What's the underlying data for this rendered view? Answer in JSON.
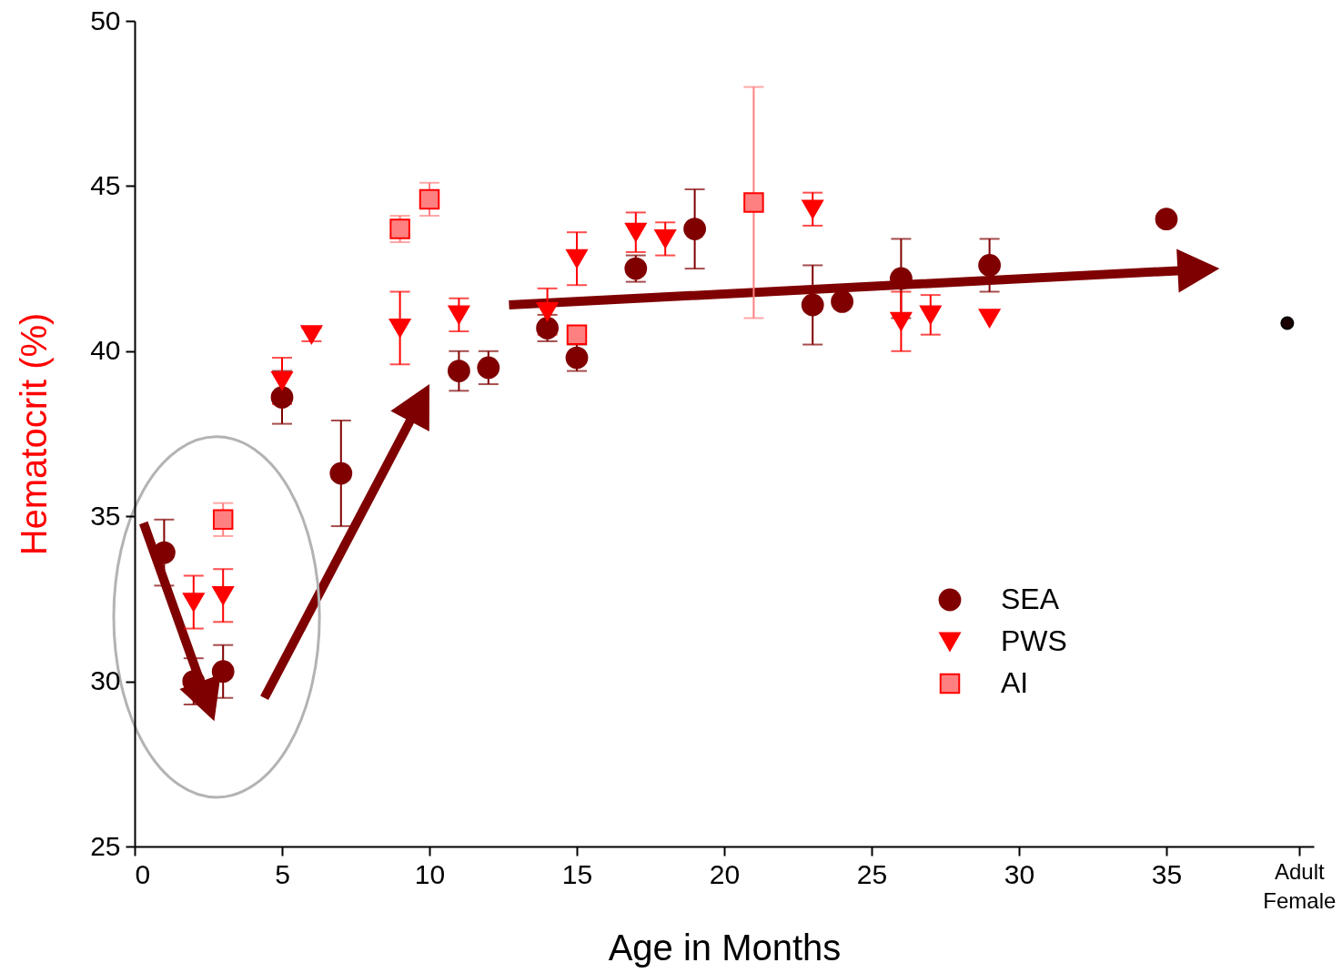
{
  "chart_data": {
    "type": "scatter",
    "xlabel": "Age in Months",
    "ylabel": "Hematocrit (%)",
    "xlim": [
      0,
      40
    ],
    "xticks": [
      0,
      5,
      10,
      15,
      20,
      25,
      30,
      35,
      {
        "value": 39.5,
        "label": "Adult Female"
      }
    ],
    "ylim": [
      25,
      50
    ],
    "yticks": [
      25,
      30,
      35,
      40,
      45,
      50
    ],
    "grid": false,
    "legend": "bottom right",
    "series": [
      {
        "name": "SEA",
        "color": "#800000",
        "marker": "circle",
        "x": [
          1,
          2,
          3,
          5,
          7,
          11,
          12,
          14,
          15,
          17,
          19,
          23,
          24,
          26,
          29,
          35
        ],
        "values": [
          33.9,
          30.0,
          30.3,
          38.6,
          36.3,
          39.4,
          39.5,
          40.7,
          39.8,
          42.5,
          43.7,
          41.4,
          41.5,
          42.2,
          42.6,
          44.0
        ],
        "errors": [
          1.0,
          0.7,
          0.8,
          0.8,
          1.6,
          0.6,
          0.5,
          0.4,
          0.4,
          0.4,
          1.2,
          1.2,
          null,
          1.2,
          0.8,
          null
        ]
      },
      {
        "name": "PWS",
        "color": "#ff0000",
        "marker": "triangle",
        "x": [
          2,
          3,
          5,
          6,
          9,
          11,
          14,
          15,
          17,
          18,
          23,
          26,
          27,
          29
        ],
        "values": [
          32.4,
          32.6,
          39.1,
          40.5,
          40.7,
          41.1,
          41.2,
          42.8,
          43.6,
          43.4,
          44.3,
          40.9,
          41.1,
          41.0
        ],
        "errors": [
          0.8,
          0.8,
          0.7,
          0.2,
          1.1,
          0.5,
          0.7,
          0.8,
          0.6,
          0.5,
          0.5,
          0.9,
          0.6,
          null
        ]
      },
      {
        "name": "AI",
        "color": "#ff8080",
        "marker": "square",
        "x": [
          3,
          9,
          10,
          15,
          21
        ],
        "values": [
          34.9,
          43.7,
          44.6,
          40.5,
          44.5
        ],
        "errors": [
          0.5,
          0.4,
          0.5,
          null,
          3.5
        ]
      },
      {
        "color": "#1a0000",
        "marker": "circle",
        "x": [
          39.1
        ],
        "values": [
          40.85
        ]
      }
    ]
  }
}
